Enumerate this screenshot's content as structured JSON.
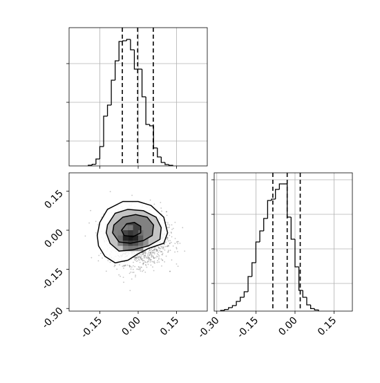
{
  "chart_data": [
    {
      "type": "histogram",
      "panel": "top-left",
      "title": "",
      "xlabel": "",
      "ylabel": "",
      "xlim": [
        -0.27,
        0.27
      ],
      "ylim": [
        0,
        1
      ],
      "x_ticks": [
        -0.15,
        0.0,
        0.15
      ],
      "y_ticks": [
        0.18,
        0.46,
        0.74
      ],
      "tick_labels_visible": false,
      "grid": true,
      "bins": [
        {
          "left": -0.195,
          "right": -0.18,
          "value": 0.005
        },
        {
          "left": -0.18,
          "right": -0.165,
          "value": 0.012
        },
        {
          "left": -0.165,
          "right": -0.15,
          "value": 0.05
        },
        {
          "left": -0.15,
          "right": -0.135,
          "value": 0.14
        },
        {
          "left": -0.135,
          "right": -0.12,
          "value": 0.36
        },
        {
          "left": -0.12,
          "right": -0.105,
          "value": 0.44
        },
        {
          "left": -0.105,
          "right": -0.09,
          "value": 0.62
        },
        {
          "left": -0.09,
          "right": -0.075,
          "value": 0.76
        },
        {
          "left": -0.075,
          "right": -0.06,
          "value": 0.9
        },
        {
          "left": -0.06,
          "right": -0.045,
          "value": 0.905
        },
        {
          "left": -0.045,
          "right": -0.03,
          "value": 0.915
        },
        {
          "left": -0.03,
          "right": -0.015,
          "value": 0.84
        },
        {
          "left": -0.015,
          "right": 0.0,
          "value": 0.7
        },
        {
          "left": 0.0,
          "right": 0.015,
          "value": 0.7
        },
        {
          "left": 0.015,
          "right": 0.03,
          "value": 0.5
        },
        {
          "left": 0.03,
          "right": 0.045,
          "value": 0.3
        },
        {
          "left": 0.045,
          "right": 0.06,
          "value": 0.29
        },
        {
          "left": 0.06,
          "right": 0.075,
          "value": 0.13
        },
        {
          "left": 0.075,
          "right": 0.09,
          "value": 0.065
        },
        {
          "left": 0.09,
          "right": 0.105,
          "value": 0.025
        },
        {
          "left": 0.105,
          "right": 0.12,
          "value": 0.01
        },
        {
          "left": 0.12,
          "right": 0.135,
          "value": 0.004
        }
      ],
      "quantile_lines": [
        -0.062,
        -0.002,
        0.059
      ],
      "line_color": "#000000"
    },
    {
      "type": "scatter",
      "panel": "bottom-left",
      "title": "",
      "xlabel": "",
      "ylabel": "",
      "xlim": [
        -0.27,
        0.27
      ],
      "ylim": [
        -0.31,
        0.22
      ],
      "x_ticks": [
        "-0.15",
        "0.00",
        "0.15"
      ],
      "y_ticks": [
        "0.15",
        "0.00",
        "-0.15",
        "-0.30"
      ],
      "grid": false,
      "point_cloud": {
        "center": [
          0.0,
          -0.03
        ],
        "std": [
          0.055,
          0.05
        ],
        "count": 2200
      },
      "density_grid": {
        "x_edges": [
          -0.12,
          -0.1,
          -0.08,
          -0.06,
          -0.04,
          -0.02,
          0.0,
          0.02,
          0.04,
          0.06,
          0.08,
          0.1
        ],
        "y_edges": [
          -0.12,
          -0.1,
          -0.08,
          -0.06,
          -0.04,
          -0.02,
          0.0,
          0.02,
          0.04,
          0.06,
          0.08
        ],
        "values": [
          [
            0.05,
            0.1,
            0.15,
            0.2,
            0.22,
            0.22,
            0.2,
            0.15,
            0.1,
            0.05,
            0.02
          ],
          [
            0.1,
            0.2,
            0.3,
            0.35,
            0.38,
            0.38,
            0.35,
            0.3,
            0.2,
            0.1,
            0.05
          ],
          [
            0.12,
            0.28,
            0.42,
            0.55,
            0.6,
            0.58,
            0.5,
            0.4,
            0.28,
            0.15,
            0.06
          ],
          [
            0.14,
            0.32,
            0.55,
            0.75,
            0.85,
            0.8,
            0.65,
            0.48,
            0.32,
            0.16,
            0.06
          ],
          [
            0.12,
            0.3,
            0.6,
            0.95,
            1.0,
            0.95,
            0.7,
            0.48,
            0.3,
            0.14,
            0.05
          ],
          [
            0.1,
            0.26,
            0.52,
            0.72,
            0.8,
            0.74,
            0.58,
            0.4,
            0.24,
            0.1,
            0.04
          ],
          [
            0.06,
            0.16,
            0.32,
            0.45,
            0.48,
            0.44,
            0.36,
            0.25,
            0.15,
            0.06,
            0.02
          ],
          [
            0.03,
            0.08,
            0.16,
            0.22,
            0.24,
            0.22,
            0.18,
            0.12,
            0.07,
            0.03,
            0.01
          ],
          [
            0.01,
            0.03,
            0.06,
            0.09,
            0.1,
            0.09,
            0.07,
            0.05,
            0.03,
            0.01,
            0.0
          ],
          [
            0.0,
            0.01,
            0.02,
            0.03,
            0.03,
            0.03,
            0.02,
            0.01,
            0.01,
            0.0,
            0.0
          ]
        ]
      },
      "contours": [
        [
          [
            -0.15,
            0.03
          ],
          [
            -0.12,
            0.08
          ],
          [
            -0.06,
            0.11
          ],
          [
            0.0,
            0.11
          ],
          [
            0.05,
            0.095
          ],
          [
            0.1,
            0.05
          ],
          [
            0.115,
            -0.01
          ],
          [
            0.1,
            -0.05
          ],
          [
            0.04,
            -0.07
          ],
          [
            0.0,
            -0.09
          ],
          [
            -0.04,
            -0.115
          ],
          [
            -0.09,
            -0.125
          ],
          [
            -0.13,
            -0.1
          ],
          [
            -0.155,
            -0.06
          ],
          [
            -0.16,
            -0.02
          ]
        ],
        [
          [
            -0.12,
            0.02
          ],
          [
            -0.09,
            0.065
          ],
          [
            -0.04,
            0.08
          ],
          [
            0.02,
            0.075
          ],
          [
            0.07,
            0.05
          ],
          [
            0.09,
            0.01
          ],
          [
            0.085,
            -0.035
          ],
          [
            0.04,
            -0.06
          ],
          [
            -0.02,
            -0.075
          ],
          [
            -0.075,
            -0.08
          ],
          [
            -0.11,
            -0.05
          ],
          [
            -0.125,
            -0.01
          ]
        ],
        [
          [
            -0.095,
            0.02
          ],
          [
            -0.06,
            0.05
          ],
          [
            -0.01,
            0.06
          ],
          [
            0.035,
            0.05
          ],
          [
            0.06,
            0.02
          ],
          [
            0.055,
            -0.02
          ],
          [
            0.02,
            -0.04
          ],
          [
            -0.03,
            -0.05
          ],
          [
            -0.075,
            -0.045
          ],
          [
            -0.1,
            -0.01
          ]
        ],
        [
          [
            -0.065,
            0.0
          ],
          [
            -0.045,
            0.025
          ],
          [
            -0.015,
            0.03
          ],
          [
            0.01,
            0.015
          ],
          [
            0.01,
            -0.01
          ],
          [
            -0.02,
            -0.025
          ],
          [
            -0.055,
            -0.02
          ]
        ]
      ]
    },
    {
      "type": "histogram",
      "panel": "bottom-right",
      "title": "",
      "xlabel": "",
      "ylabel": "",
      "xlim": [
        -0.31,
        0.22
      ],
      "ylim": [
        0,
        1
      ],
      "x_ticks": [
        "-0.30",
        "-0.15",
        "0.00",
        "0.15"
      ],
      "y_ticks": [
        0.2,
        0.45,
        0.7,
        0.95
      ],
      "tick_labels_visible": false,
      "grid": true,
      "bins": [
        {
          "left": -0.285,
          "right": -0.27,
          "value": 0.005
        },
        {
          "left": -0.27,
          "right": -0.255,
          "value": 0.012
        },
        {
          "left": -0.255,
          "right": -0.24,
          "value": 0.025
        },
        {
          "left": -0.24,
          "right": -0.225,
          "value": 0.04
        },
        {
          "left": -0.225,
          "right": -0.21,
          "value": 0.07
        },
        {
          "left": -0.21,
          "right": -0.195,
          "value": 0.1
        },
        {
          "left": -0.195,
          "right": -0.18,
          "value": 0.14
        },
        {
          "left": -0.18,
          "right": -0.165,
          "value": 0.25
        },
        {
          "left": -0.165,
          "right": -0.15,
          "value": 0.35
        },
        {
          "left": -0.15,
          "right": -0.135,
          "value": 0.5
        },
        {
          "left": -0.135,
          "right": -0.12,
          "value": 0.58
        },
        {
          "left": -0.12,
          "right": -0.105,
          "value": 0.67
        },
        {
          "left": -0.105,
          "right": -0.09,
          "value": 0.8
        },
        {
          "left": -0.09,
          "right": -0.075,
          "value": 0.81
        },
        {
          "left": -0.075,
          "right": -0.06,
          "value": 0.88
        },
        {
          "left": -0.06,
          "right": -0.045,
          "value": 0.92
        },
        {
          "left": -0.045,
          "right": -0.03,
          "value": 0.92
        },
        {
          "left": -0.03,
          "right": -0.015,
          "value": 0.68
        },
        {
          "left": -0.015,
          "right": 0.0,
          "value": 0.52
        },
        {
          "left": 0.0,
          "right": 0.015,
          "value": 0.32
        },
        {
          "left": 0.015,
          "right": 0.03,
          "value": 0.15
        },
        {
          "left": 0.03,
          "right": 0.045,
          "value": 0.1
        },
        {
          "left": 0.045,
          "right": 0.06,
          "value": 0.045
        },
        {
          "left": 0.06,
          "right": 0.075,
          "value": 0.018
        },
        {
          "left": 0.075,
          "right": 0.09,
          "value": 0.008
        }
      ],
      "quantile_lines": [
        -0.085,
        -0.03,
        0.02
      ],
      "line_color": "#000000"
    }
  ]
}
